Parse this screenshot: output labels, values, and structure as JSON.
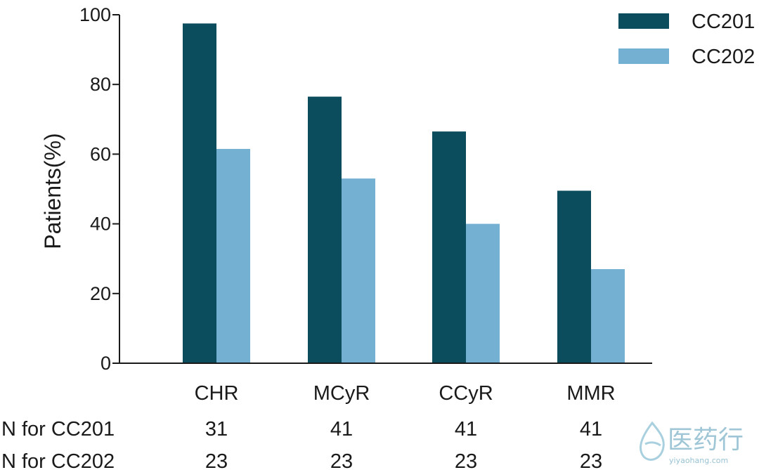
{
  "chart_data": {
    "type": "bar",
    "categories": [
      "CHR",
      "MCyR",
      "CCyR",
      "MMR"
    ],
    "series": [
      {
        "name": "CC201",
        "values": [
          97.5,
          76.5,
          66.5,
          49.5
        ],
        "color": "#0b4d5c"
      },
      {
        "name": "CC202",
        "values": [
          61.5,
          53,
          40,
          27
        ],
        "color": "#74b0d2"
      }
    ],
    "ylabel": "Patients(%)",
    "xlabel": "",
    "ylim": [
      0,
      100
    ],
    "yticks": [
      "0",
      "20",
      "40",
      "60",
      "80",
      "100"
    ],
    "legend_position": "top-right",
    "grid": false,
    "n_rows": [
      {
        "label": "N for CC201",
        "values": [
          "31",
          "41",
          "41",
          "41"
        ]
      },
      {
        "label": "N for CC202",
        "values": [
          "23",
          "23",
          "23",
          "23"
        ]
      }
    ]
  },
  "watermark": {
    "text": "医药行",
    "subtext": "yiyaohang.com",
    "icon": "leaf-drop-icon"
  }
}
